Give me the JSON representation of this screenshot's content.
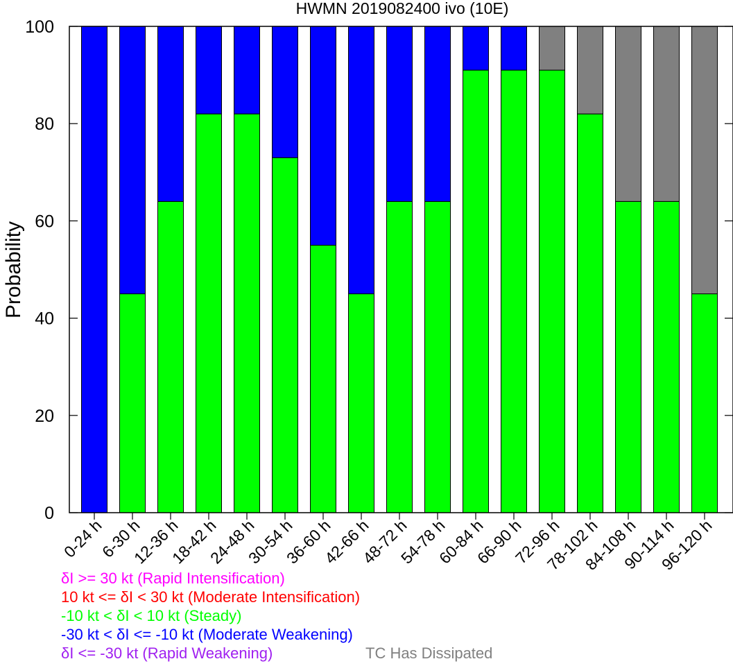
{
  "chart_data": {
    "type": "bar",
    "stacked": true,
    "title": "HWMN 2019082400 ivo (10E)",
    "xlabel": "",
    "ylabel": "Probability",
    "ylim": [
      0,
      100
    ],
    "yticks": [
      0,
      20,
      40,
      60,
      80,
      100
    ],
    "categories": [
      "0-24 h",
      "6-30 h",
      "12-36 h",
      "18-42 h",
      "24-48 h",
      "30-54 h",
      "36-60 h",
      "42-66 h",
      "48-72 h",
      "54-78 h",
      "60-84 h",
      "66-90 h",
      "72-96 h",
      "78-102 h",
      "84-108 h",
      "90-114 h",
      "96-120 h"
    ],
    "series": [
      {
        "name": "Steady",
        "color": "#00ff00",
        "values": [
          0,
          45,
          64,
          82,
          82,
          73,
          55,
          45,
          64,
          64,
          91,
          91,
          91,
          82,
          64,
          64,
          45
        ]
      },
      {
        "name": "Moderate Weakening",
        "color": "#0000ff",
        "values": [
          100,
          55,
          36,
          18,
          18,
          27,
          45,
          55,
          36,
          36,
          9,
          9,
          0,
          0,
          0,
          0,
          0
        ]
      },
      {
        "name": "TC Has Dissipated",
        "color": "#808080",
        "values": [
          0,
          0,
          0,
          0,
          0,
          0,
          0,
          0,
          0,
          0,
          0,
          0,
          9,
          18,
          36,
          36,
          55
        ]
      }
    ]
  },
  "legend": {
    "rapid_intensification": {
      "text": "δI >= 30 kt (Rapid Intensification)",
      "color": "#ff00ff"
    },
    "moderate_intensification": {
      "text": "10 kt <= δI < 30 kt (Moderate Intensification)",
      "color": "#ff0000"
    },
    "steady": {
      "text": "-10 kt < δI < 10 kt (Steady)",
      "color": "#00ff00"
    },
    "moderate_weakening": {
      "text": "-30 kt < δI <= -10 kt (Moderate Weakening)",
      "color": "#0000ff"
    },
    "rapid_weakening": {
      "text": "δI <= -30 kt (Rapid Weakening)",
      "color": "#a020f0"
    },
    "dissipated": {
      "text": "TC Has Dissipated",
      "color": "#808080"
    }
  }
}
